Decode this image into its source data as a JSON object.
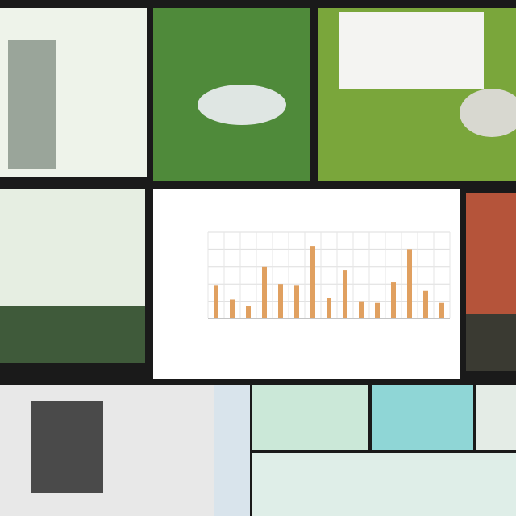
{
  "chart_data": {
    "type": "bar",
    "categories": [
      null,
      null,
      null,
      null,
      null,
      null,
      null,
      null,
      null,
      null,
      null,
      null,
      null,
      null,
      null
    ],
    "values": [
      1.9,
      1.1,
      0.7,
      3.0,
      2.0,
      1.9,
      4.2,
      1.2,
      2.8,
      1.0,
      0.9,
      2.1,
      4.0,
      1.6,
      0.9
    ],
    "color": "#e0a060",
    "ylim": [
      0,
      5
    ],
    "yticks": [
      0,
      1,
      2,
      3,
      4,
      5
    ],
    "grid": true
  }
}
